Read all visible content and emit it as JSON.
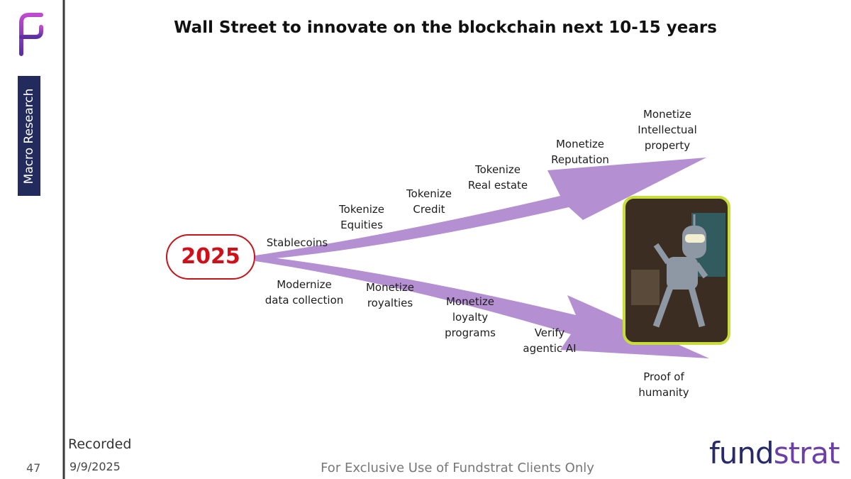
{
  "sidebar": {
    "label": "Macro Research",
    "page_number": "47"
  },
  "title": "Wall Street to innovate on the blockchain next 10-15 years",
  "origin": "2025",
  "upper_path": [
    "Stablecoins",
    "Tokenize\nEquities",
    "Tokenize\nCredit",
    "Tokenize\nReal estate",
    "Monetize\nReputation",
    "Monetize\nIntellectual\nproperty"
  ],
  "lower_path": [
    "Modernize\ndata collection",
    "Monetize\nroyalties",
    "Monetize\nloyalty\nprograms",
    "Verify\nagentic AI",
    "Proof of\nhumanity"
  ],
  "recorded": {
    "label": "Recorded",
    "date": "9/9/2025"
  },
  "footer": "For Exclusive Use of Fundstrat Clients Only",
  "brand": {
    "part1": "fund",
    "part2": "strat"
  }
}
